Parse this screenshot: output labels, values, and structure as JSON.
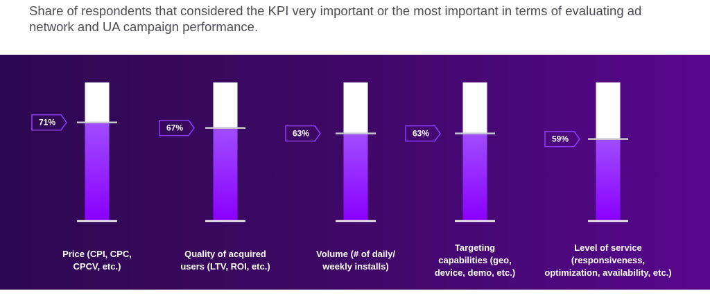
{
  "subtitle": "Share of respondents that considered the KPI very important or the most important in terms of evaluating ad network and UA campaign performance.",
  "colors": {
    "panel_start": "#2e0852",
    "panel_end": "#57078c",
    "bar_top": "#a04dff",
    "bar_bottom": "#8a00ff",
    "empty": "#ffffff",
    "marker": "#c8c8d0",
    "tag_border": "#8a3dff"
  },
  "chart_data": {
    "type": "bar",
    "title": "",
    "xlabel": "",
    "ylabel": "",
    "ylim": [
      0,
      100
    ],
    "grid": false,
    "legend": "none",
    "categories": [
      "Price (CPI, CPC, CPCV, etc.)",
      "Quality of acquired users (LTV, ROI, etc.)",
      "Volume (# of daily/ weekly installs)",
      "Targeting capabilities (geo, device, demo, etc.)",
      "Level of service (responsiveness, optimization, availability, etc.)"
    ],
    "category_lines": [
      [
        "Price (CPI, CPC,",
        "CPCV, etc.)"
      ],
      [
        "Quality of acquired",
        "users (LTV, ROI, etc.)"
      ],
      [
        "Volume (# of daily/",
        "weekly installs)"
      ],
      [
        "Targeting",
        "capabilities (geo,",
        "device, demo, etc.)"
      ],
      [
        "Level of service",
        "(responsiveness,",
        "optimization, availability, etc.)"
      ]
    ],
    "values": [
      71,
      67,
      63,
      63,
      59
    ],
    "data_labels": [
      "71%",
      "67%",
      "63%",
      "63%",
      "59%"
    ]
  }
}
